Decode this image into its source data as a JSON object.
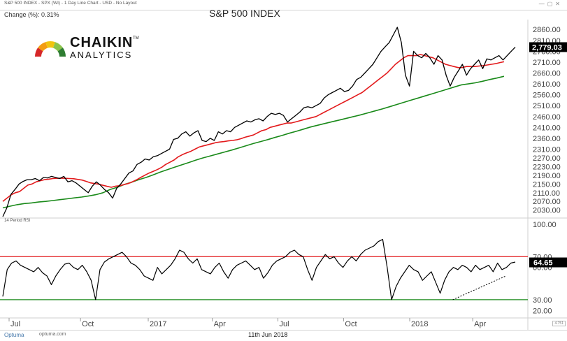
{
  "header": {
    "context": "S&P 500 INDEX - SPX (WI) - 1 Day Line Chart - USD - No Layout",
    "change": "Change (%): 0.31%",
    "title": "S&P 500 INDEX"
  },
  "logo": {
    "brand": "CHAIKIN",
    "tm": "TM",
    "sub": "ANALYTICS",
    "colors": [
      "#d62728",
      "#f39c12",
      "#f1c40f",
      "#8bc34a",
      "#2e7d32"
    ]
  },
  "footer": {
    "brand": "Optuma",
    "url": "optuma.com",
    "date": "11th Jun 2018",
    "corner": "4.751"
  },
  "colors": {
    "price": "#000000",
    "ma50": "#e31a1c",
    "ma200": "#1a8a1a",
    "rsi_upper": "#e31a1c",
    "rsi_lower": "#1a8a1a",
    "label_bg": "#000000"
  },
  "chart_data": [
    {
      "type": "line",
      "title": "S&P 500 INDEX",
      "x_ticks": [
        "Jul",
        "Oct",
        "2017",
        "Apr",
        "Jul",
        "Oct",
        "2018",
        "Apr"
      ],
      "ylim": [
        2000,
        2880
      ],
      "y_ticks": [
        2860,
        2810,
        2760,
        2710,
        2660,
        2610,
        2560,
        2510,
        2460,
        2410,
        2360,
        2310,
        2270,
        2230,
        2190,
        2150,
        2110,
        2070,
        2030
      ],
      "y_tick_labels": [
        "2860.00",
        "2810.00",
        "2760.00",
        "2710.00",
        "2660.00",
        "2610.00",
        "2560.00",
        "2510.00",
        "2460.00",
        "2410.00",
        "2360.00",
        "2310.00",
        "2270.00",
        "2230.00",
        "2190.00",
        "2150.00",
        "2110.00",
        "2070.00",
        "2030.00"
      ],
      "last_value": 2779.03,
      "last_label": "2,779.03",
      "series": [
        {
          "values": [
            2000,
            2040,
            2102,
            2125,
            2150,
            2162,
            2170,
            2170,
            2175,
            2165,
            2180,
            2178,
            2185,
            2180,
            2175,
            2185,
            2160,
            2165,
            2155,
            2140,
            2125,
            2110,
            2140,
            2160,
            2145,
            2125,
            2110,
            2085,
            2130,
            2150,
            2175,
            2200,
            2210,
            2240,
            2250,
            2265,
            2260,
            2275,
            2280,
            2290,
            2300,
            2310,
            2355,
            2360,
            2380,
            2390,
            2370,
            2385,
            2395,
            2350,
            2345,
            2360,
            2350,
            2390,
            2380,
            2395,
            2390,
            2410,
            2420,
            2430,
            2440,
            2435,
            2445,
            2450,
            2440,
            2460,
            2475,
            2470,
            2475,
            2465,
            2435,
            2450,
            2465,
            2480,
            2500,
            2505,
            2500,
            2510,
            2520,
            2545,
            2560,
            2570,
            2580,
            2590,
            2575,
            2580,
            2600,
            2630,
            2640,
            2660,
            2680,
            2700,
            2730,
            2760,
            2780,
            2800,
            2835,
            2870,
            2800,
            2650,
            2600,
            2760,
            2740,
            2730,
            2750,
            2730,
            2700,
            2740,
            2720,
            2650,
            2600,
            2640,
            2670,
            2700,
            2650,
            2680,
            2700,
            2720,
            2680,
            2725,
            2720,
            2730,
            2740,
            2720,
            2740,
            2760,
            2779
          ]
        },
        {
          "values": [
            2070,
            2085,
            2100,
            2110,
            2115,
            2130,
            2145,
            2150,
            2160,
            2165,
            2170,
            2172,
            2175,
            2176,
            2177,
            2176,
            2175,
            2174,
            2171,
            2168,
            2162,
            2155,
            2152,
            2149,
            2144,
            2139,
            2135,
            2140,
            2142,
            2147,
            2152,
            2160,
            2169,
            2180,
            2190,
            2200,
            2208,
            2216,
            2226,
            2240,
            2250,
            2260,
            2275,
            2285,
            2293,
            2300,
            2310,
            2320,
            2325,
            2330,
            2335,
            2340,
            2343,
            2345,
            2348,
            2350,
            2353,
            2358,
            2365,
            2370,
            2375,
            2385,
            2395,
            2400,
            2410,
            2415,
            2420,
            2425,
            2430,
            2430,
            2435,
            2440,
            2445,
            2450,
            2455,
            2460,
            2470,
            2480,
            2490,
            2500,
            2510,
            2520,
            2530,
            2540,
            2550,
            2560,
            2570,
            2585,
            2600,
            2615,
            2630,
            2645,
            2660,
            2680,
            2700,
            2715,
            2730,
            2740,
            2740,
            2740,
            2745,
            2740,
            2735,
            2730,
            2720,
            2710,
            2700,
            2695,
            2690,
            2685,
            2685,
            2690,
            2690,
            2690,
            2692,
            2694,
            2697,
            2700,
            2703,
            2708,
            2712
          ]
        },
        {
          "values": [
            2040,
            2048,
            2055,
            2060,
            2063,
            2067,
            2070,
            2074,
            2078,
            2082,
            2086,
            2090,
            2095,
            2101,
            2110,
            2125,
            2135,
            2148,
            2158,
            2170,
            2180,
            2192,
            2205,
            2216,
            2227,
            2238,
            2249,
            2260,
            2270,
            2279,
            2288,
            2297,
            2306,
            2316,
            2326,
            2336,
            2345,
            2354,
            2364,
            2373,
            2383,
            2392,
            2402,
            2412,
            2420,
            2428,
            2436,
            2444,
            2452,
            2460,
            2468,
            2477,
            2486,
            2495,
            2505,
            2515,
            2525,
            2535,
            2545,
            2555,
            2565,
            2575,
            2585,
            2595,
            2605,
            2610,
            2615,
            2622,
            2630,
            2637,
            2645
          ]
        }
      ]
    },
    {
      "type": "line",
      "title": "14 Period RSI",
      "ylim": [
        15,
        102
      ],
      "y_ticks": [
        100,
        70,
        60,
        30,
        20
      ],
      "y_tick_labels": [
        "100.00",
        "70.00",
        "60.00",
        "30.00",
        "20.00"
      ],
      "thresholds": [
        70,
        30
      ],
      "last_value": 64.65,
      "last_label": "64.65",
      "trendline": {
        "x": [
          0.857,
          0.958
        ],
        "y": [
          30,
          52
        ]
      },
      "series": [
        {
          "values": [
            33,
            58,
            64,
            66,
            62,
            60,
            58,
            56,
            60,
            55,
            52,
            44,
            52,
            58,
            63,
            64,
            60,
            58,
            62,
            56,
            48,
            30,
            58,
            65,
            68,
            70,
            72,
            74,
            70,
            64,
            62,
            58,
            52,
            50,
            48,
            60,
            54,
            58,
            62,
            68,
            76,
            74,
            68,
            64,
            68,
            58,
            56,
            54,
            60,
            64,
            56,
            50,
            58,
            62,
            64,
            66,
            62,
            58,
            60,
            50,
            55,
            62,
            66,
            68,
            70,
            74,
            76,
            72,
            70,
            58,
            48,
            60,
            66,
            72,
            68,
            70,
            64,
            60,
            66,
            70,
            66,
            72,
            76,
            78,
            80,
            84,
            86,
            60,
            30,
            42,
            50,
            56,
            62,
            58,
            56,
            48,
            52,
            56,
            46,
            36,
            48,
            56,
            60,
            58,
            62,
            60,
            56,
            62,
            58,
            60,
            62,
            56,
            64,
            58,
            60,
            64,
            65
          ]
        }
      ]
    }
  ]
}
